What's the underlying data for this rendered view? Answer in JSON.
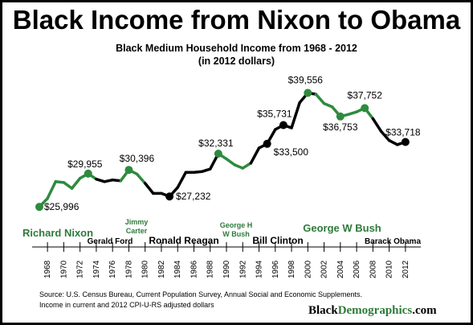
{
  "chart_data": {
    "type": "line",
    "title": "Black Income from Nixon to Obama",
    "subtitle": "Black Medium Household Income from 1968 - 2012",
    "subtitle2": "(in 2012 dollars)",
    "xlabel": "",
    "ylabel": "",
    "xlim": [
      1967,
      2013
    ],
    "ylim": [
      24000,
      42000
    ],
    "grid": false,
    "x_ticks": [
      1968,
      1970,
      1972,
      1974,
      1976,
      1978,
      1980,
      1982,
      1984,
      1986,
      1988,
      1990,
      1992,
      1994,
      1996,
      1998,
      2000,
      2002,
      2004,
      2006,
      2008,
      2010,
      2012
    ],
    "series": [
      {
        "x": [
          1967,
          1968,
          1969,
          1970,
          1971,
          1972,
          1973,
          1974,
          1975,
          1976,
          1977,
          1978,
          1979,
          1980,
          1981,
          1982,
          1983,
          1984,
          1985,
          1986,
          1987,
          1988,
          1989,
          1990,
          1991,
          1992,
          1993,
          1994,
          1995,
          1996,
          1997,
          1998,
          1999,
          2000,
          2001,
          2002,
          2003,
          2004,
          2005,
          2006,
          2007,
          2008,
          2009,
          2010,
          2011,
          2012
        ],
        "values": [
          25996,
          27000,
          29000,
          28900,
          28200,
          29400,
          29955,
          29300,
          29000,
          29200,
          29100,
          30396,
          29900,
          28800,
          27600,
          27600,
          27232,
          28300,
          30100,
          30100,
          30200,
          30500,
          32331,
          31700,
          31000,
          30600,
          31200,
          33000,
          33500,
          35200,
          35731,
          35400,
          38400,
          39556,
          39400,
          38300,
          37900,
          36753,
          37000,
          37300,
          37752,
          36500,
          35000,
          33900,
          33400,
          33718
        ]
      }
    ],
    "segment_colors": {
      "green_ranges": [
        [
          1967,
          1974
        ],
        [
          1977,
          1980
        ],
        [
          1989,
          1993
        ],
        [
          2001,
          2008
        ]
      ],
      "green": "#2e8b3e",
      "black": "#000000"
    },
    "highlight_points": [
      {
        "x": 1967,
        "value": 25996,
        "label": "$25,996",
        "color": "#2e8b3e"
      },
      {
        "x": 1973,
        "value": 29955,
        "label": "$29,955",
        "color": "#2e8b3e"
      },
      {
        "x": 1978,
        "value": 30396,
        "label": "$30,396",
        "color": "#2e8b3e"
      },
      {
        "x": 1983,
        "value": 27232,
        "label": "$27,232",
        "color": "#000000"
      },
      {
        "x": 1989,
        "value": 32331,
        "label": "$32,331",
        "color": "#2e8b3e"
      },
      {
        "x": 1995,
        "value": 33500,
        "label": "$33,500",
        "color": "#000000"
      },
      {
        "x": 1997,
        "value": 35731,
        "label": "$35,731",
        "color": "#000000"
      },
      {
        "x": 2000,
        "value": 39556,
        "label": "$39,556",
        "color": "#2e8b3e"
      },
      {
        "x": 2004,
        "value": 36753,
        "label": "$36,753",
        "color": "#2e8b3e"
      },
      {
        "x": 2007,
        "value": 37752,
        "label": "$37,752",
        "color": "#2e8b3e"
      },
      {
        "x": 2012,
        "value": 33718,
        "label": "$33,718",
        "color": "#000000"
      }
    ],
    "presidents": [
      {
        "name": "Richard Nixon",
        "color": "#2e7a3a"
      },
      {
        "name": "Gerald Ford",
        "color": "#000000"
      },
      {
        "name": "Jimmy",
        "name2": "Carter",
        "color": "#2e7a3a"
      },
      {
        "name": "Ronald Reagan",
        "color": "#000000"
      },
      {
        "name": "George H",
        "name2": "W Bush",
        "color": "#2e7a3a"
      },
      {
        "name": "Bill Clinton",
        "color": "#000000"
      },
      {
        "name": "George W Bush",
        "color": "#2e7a3a"
      },
      {
        "name": "Barack Obama",
        "color": "#000000"
      }
    ]
  },
  "source_line1": "Source: U.S. Census Bureau, Current Population Survey, Annual Social and Economic Supplements.",
  "source_line2": "Income in current and 2012 CPI-U-RS adjusted dollars",
  "brand": {
    "part1": "Black",
    "part2": "Demographics",
    "part3": ".com"
  }
}
